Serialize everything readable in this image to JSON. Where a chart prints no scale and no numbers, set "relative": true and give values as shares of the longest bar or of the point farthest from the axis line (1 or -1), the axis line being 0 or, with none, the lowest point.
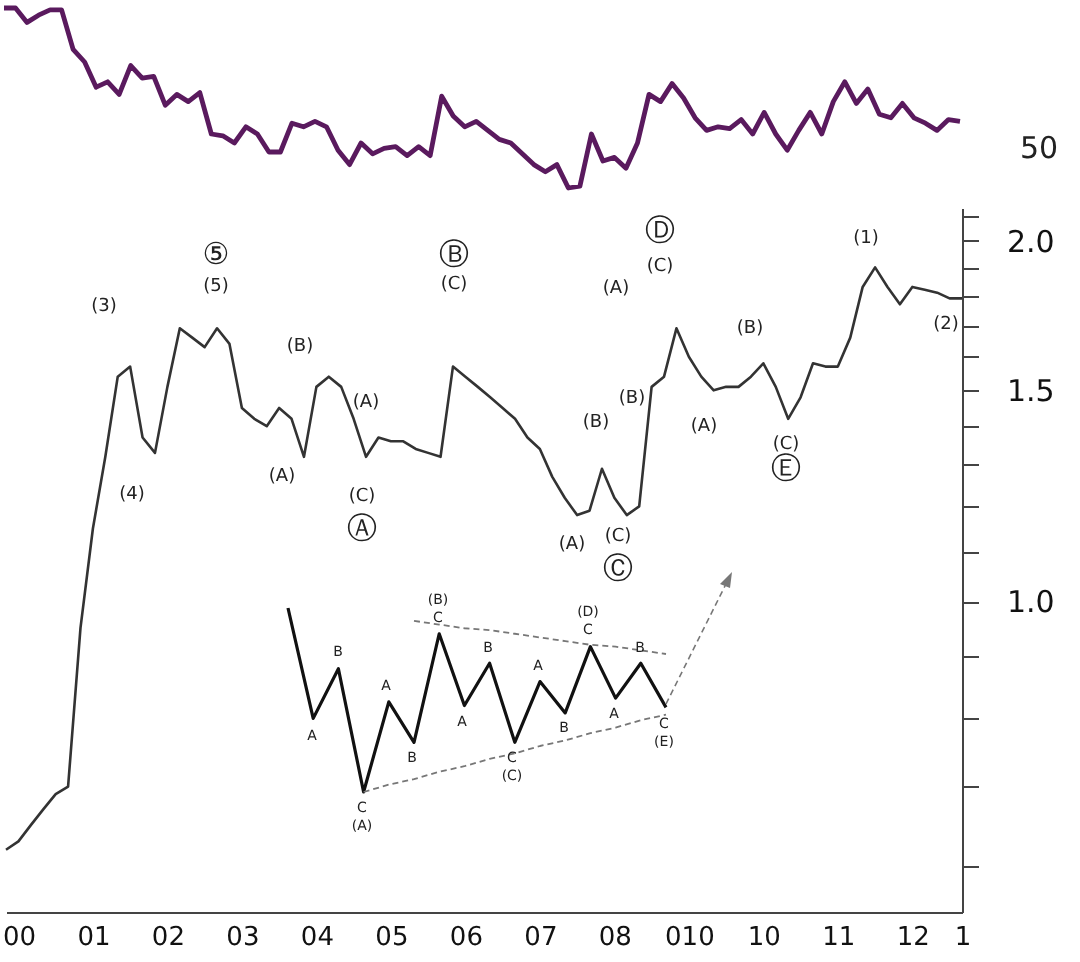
{
  "chart_data": [
    {
      "type": "line",
      "relative": true,
      "categories": [
        null,
        null,
        null,
        null,
        null,
        null,
        null,
        null,
        null,
        null,
        null,
        null,
        null,
        null,
        null,
        null,
        null,
        null,
        null,
        null,
        null,
        null,
        null,
        null,
        null,
        null,
        null,
        null,
        null,
        null,
        null,
        null,
        null,
        null,
        null,
        null,
        null,
        null,
        null,
        null,
        null,
        null,
        null,
        null,
        null,
        null,
        null,
        null,
        null,
        null,
        null,
        null,
        null,
        null,
        null,
        null,
        null,
        null,
        null,
        null,
        null,
        null,
        null,
        null,
        null,
        null,
        null,
        null,
        null,
        null,
        null,
        null,
        null,
        null,
        null,
        null,
        null,
        null,
        null,
        null,
        null,
        null,
        null,
        null
      ],
      "series": [
        {
          "color": "#5a1a5e",
          "values": [
            1.0,
            1.0,
            0.92,
            0.96,
            0.99,
            0.99,
            0.77,
            0.7,
            0.56,
            0.59,
            0.52,
            0.68,
            0.61,
            0.62,
            0.46,
            0.52,
            0.48,
            0.53,
            0.3,
            0.29,
            0.25,
            0.34,
            0.3,
            0.2,
            0.2,
            0.36,
            0.34,
            0.37,
            0.34,
            0.21,
            0.13,
            0.25,
            0.19,
            0.22,
            0.23,
            0.18,
            0.23,
            0.18,
            0.51,
            0.4,
            0.34,
            0.37,
            0.32,
            0.27,
            0.25,
            0.19,
            0.13,
            0.09,
            0.13,
            0,
            0.01,
            0.3,
            0.15,
            0.17,
            0.11,
            0.25,
            0.52,
            0.48,
            0.58,
            0.5,
            0.39,
            0.32,
            0.34,
            0.33,
            0.38,
            0.3,
            0.42,
            0.3,
            0.21,
            0.32,
            0.42,
            0.3,
            0.48,
            0.59,
            0.47,
            0.55,
            0.41,
            0.39,
            0.47,
            0.39,
            0.36,
            0.32,
            0.38,
            0.37
          ]
        }
      ],
      "annotations": [
        "50"
      ]
    },
    {
      "type": "line",
      "log": true,
      "ylim": [
        0.55,
        2.13
      ],
      "categories": [
        null,
        "00",
        null,
        null,
        null,
        null,
        null,
        "01",
        null,
        null,
        null,
        null,
        null,
        "02",
        null,
        null,
        null,
        null,
        null,
        "03",
        null,
        null,
        null,
        null,
        null,
        "04",
        null,
        null,
        null,
        null,
        null,
        "05",
        null,
        null,
        null,
        null,
        null,
        "06",
        null,
        null,
        null,
        null,
        null,
        "07",
        null,
        null,
        null,
        null,
        null,
        "08",
        null,
        null,
        null,
        null,
        null,
        "010",
        null,
        null,
        null,
        null,
        null,
        "10",
        null,
        null,
        null,
        null,
        null,
        "11",
        null,
        null,
        null,
        null,
        null,
        "12",
        null,
        null,
        null,
        "1"
      ],
      "yticks": [
        {
          "value": 0.6,
          "label": null
        },
        {
          "value": 0.7,
          "label": null
        },
        {
          "value": 0.8,
          "label": null
        },
        {
          "value": 0.9,
          "label": null
        },
        {
          "value": 1.0,
          "label": "1.0"
        },
        {
          "value": 1.1,
          "label": null
        },
        {
          "value": 1.2,
          "label": null
        },
        {
          "value": 1.3,
          "label": null
        },
        {
          "value": 1.4,
          "label": null
        },
        {
          "value": 1.5,
          "label": "1.5"
        },
        {
          "value": 1.6,
          "label": null
        },
        {
          "value": 1.7,
          "label": null
        },
        {
          "value": 1.8,
          "label": null
        },
        {
          "value": 1.9,
          "label": null
        },
        {
          "value": 2.0,
          "label": "2.0"
        },
        {
          "value": 2.1,
          "label": null
        }
      ],
      "series": [
        {
          "color": "#333333",
          "values": [
            0.62,
            0.63,
            0.65,
            0.67,
            0.69,
            0.7,
            0.95,
            1.15,
            1.32,
            1.54,
            1.57,
            1.37,
            1.33,
            1.51,
            1.69,
            1.66,
            1.63,
            1.69,
            1.64,
            1.45,
            1.42,
            1.4,
            1.45,
            1.42,
            1.32,
            1.51,
            1.54,
            1.51,
            1.42,
            1.32,
            1.37,
            1.36,
            1.36,
            1.34,
            1.33,
            1.32,
            1.57,
            1.54,
            1.51,
            1.48,
            1.45,
            1.42,
            1.37,
            1.34,
            1.27,
            1.22,
            1.18,
            1.19,
            1.29,
            1.22,
            1.18,
            1.2,
            1.51,
            1.54,
            1.69,
            1.6,
            1.54,
            1.5,
            1.51,
            1.51,
            1.54,
            1.58,
            1.51,
            1.42,
            1.48,
            1.58,
            1.57,
            1.57,
            1.66,
            1.83,
            1.9,
            1.83,
            1.77,
            1.83,
            1.82,
            1.81,
            1.79,
            1.79
          ]
        }
      ],
      "annotations": [
        "(3)",
        "(4)",
        "⑤",
        "(5)",
        "(B)",
        "(A)",
        "(A)",
        "(C)",
        "Ⓐ",
        "Ⓑ",
        "(C)",
        "(A)",
        "Ⓓ",
        "(C)",
        "(B)",
        "(A)",
        "(B)",
        "(C)",
        "Ⓒ",
        "(A)",
        "(B)",
        "(C)",
        "Ⓔ",
        "(1)",
        "(2)"
      ]
    },
    {
      "type": "line",
      "relative": true,
      "categories": [
        null,
        null,
        null,
        null,
        null,
        null,
        null,
        null,
        null,
        null,
        null,
        null,
        null,
        null,
        null,
        null
      ],
      "series": [
        {
          "color": "#111111",
          "values": [
            1.0,
            0.4,
            0.67,
            0,
            0.49,
            0.27,
            0.86,
            0.47,
            0.7,
            0.27,
            0.6,
            0.43,
            0.79,
            0.51,
            0.7,
            0.46
          ]
        },
        {
          "color": "#777777",
          "line_style": "dashed",
          "values": [
            null,
            null,
            null,
            null,
            null,
            0.93,
            0.91,
            0.89,
            0.88,
            0.86,
            0.84,
            0.82,
            0.8,
            0.79,
            0.77,
            0.75
          ]
        },
        {
          "color": "#777777",
          "line_style": "dashed",
          "values": [
            null,
            null,
            null,
            0,
            0.04,
            0.07,
            0.11,
            0.14,
            0.18,
            0.21,
            0.25,
            0.28,
            0.32,
            0.35,
            0.39,
            0.42
          ]
        }
      ],
      "annotations": [
        "A",
        "B",
        "C",
        "(A)",
        "A",
        "B",
        "C",
        "(B)",
        "A",
        "B",
        "C",
        "(C)",
        "A",
        "B",
        "C",
        "(D)",
        "A",
        "B",
        "C",
        "(E)"
      ]
    }
  ]
}
